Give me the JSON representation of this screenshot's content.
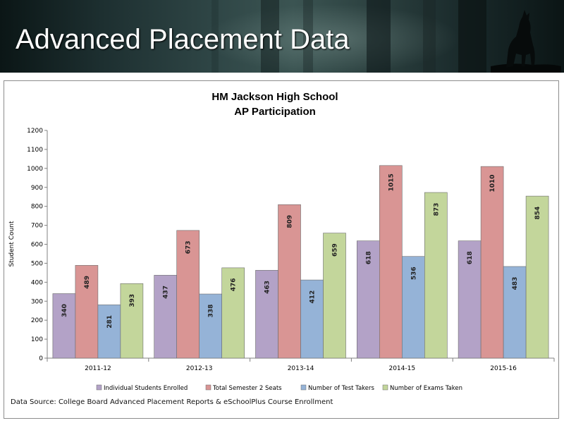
{
  "slide": {
    "title": "Advanced Placement Data"
  },
  "chart_data": {
    "type": "bar",
    "title": "HM Jackson High School",
    "subtitle": "AP Participation",
    "xlabel": "",
    "ylabel": "Student Count",
    "ylim": [
      0,
      1200
    ],
    "yticks": [
      0,
      100,
      200,
      300,
      400,
      500,
      600,
      700,
      800,
      900,
      1000,
      1100,
      1200
    ],
    "grid": false,
    "legend_position": "bottom",
    "categories": [
      "2011-12",
      "2012-13",
      "2013-14",
      "2014-15",
      "2015-16"
    ],
    "series": [
      {
        "name": "Individual Students Enrolled",
        "color": "#b3a2c7",
        "values": [
          340,
          437,
          463,
          618,
          618
        ]
      },
      {
        "name": "Total Semester 2 Seats",
        "color": "#d99594",
        "values": [
          489,
          673,
          809,
          1015,
          1010
        ]
      },
      {
        "name": "Number of Test Takers",
        "color": "#95b3d7",
        "values": [
          281,
          338,
          412,
          536,
          483
        ]
      },
      {
        "name": "Number of Exams Taken",
        "color": "#c3d69b",
        "values": [
          393,
          476,
          659,
          873,
          854
        ]
      }
    ]
  },
  "footer": {
    "source": "Data Source: College Board Advanced Placement Reports & eSchoolPlus Course Enrollment"
  }
}
